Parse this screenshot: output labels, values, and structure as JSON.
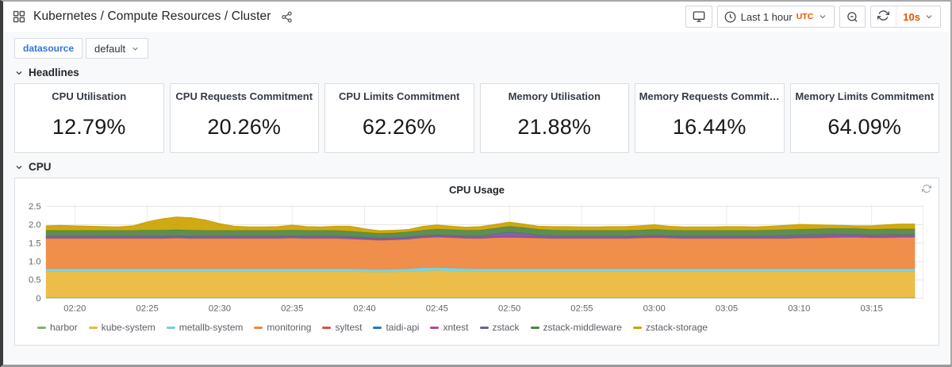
{
  "header": {
    "title": "Kubernetes / Compute Resources / Cluster",
    "toolbar": {
      "time_label": "Last 1 hour",
      "timezone": "UTC",
      "refresh_interval": "10s"
    }
  },
  "variables": {
    "label": "datasource",
    "value": "default"
  },
  "sections": {
    "headlines": "Headlines",
    "cpu": "CPU"
  },
  "stats": [
    {
      "title": "CPU Utilisation",
      "value": "12.79%"
    },
    {
      "title": "CPU Requests Commitment",
      "value": "20.26%"
    },
    {
      "title": "CPU Limits Commitment",
      "value": "62.26%"
    },
    {
      "title": "Memory Utilisation",
      "value": "21.88%"
    },
    {
      "title": "Memory Requests Commitm...",
      "value": "16.44%"
    },
    {
      "title": "Memory Limits Commitment",
      "value": "64.09%"
    }
  ],
  "colors": {
    "accent_orange": "#e55400",
    "variable_blue": "#3274d9",
    "panel_border": "#d9dce2"
  },
  "chart_data": {
    "type": "area",
    "stacked": true,
    "title": "CPU Usage",
    "x_start": "02:18",
    "x_step_minutes": 1,
    "n_points": 61,
    "ylim": [
      0,
      2.5
    ],
    "y_tick_values": [
      0,
      0.5,
      1.0,
      1.5,
      2.0,
      2.5
    ],
    "y_tick_labels": [
      "0",
      "0.5",
      "1.0",
      "1.5",
      "2.0",
      "2.5"
    ],
    "tick_indices": [
      2,
      7,
      12,
      17,
      22,
      27,
      32,
      37,
      42,
      47,
      52,
      57
    ],
    "tick_labels": [
      "02:20",
      "02:25",
      "02:30",
      "02:35",
      "02:40",
      "02:45",
      "02:50",
      "02:55",
      "03:00",
      "03:05",
      "03:10",
      "03:15"
    ],
    "legend_position": "bottom",
    "series": [
      {
        "name": "harbor",
        "color": "#7EB26D",
        "constant": 0.02
      },
      {
        "name": "kube-system",
        "color": "#EAB839",
        "values": [
          0.7,
          0.7,
          0.7,
          0.7,
          0.7,
          0.7,
          0.7,
          0.7,
          0.7,
          0.7,
          0.7,
          0.7,
          0.7,
          0.7,
          0.7,
          0.7,
          0.7,
          0.7,
          0.7,
          0.7,
          0.7,
          0.7,
          0.695,
          0.69,
          0.695,
          0.7,
          0.72,
          0.735,
          0.72,
          0.705,
          0.7,
          0.7,
          0.7,
          0.7,
          0.7,
          0.7,
          0.7,
          0.7,
          0.7,
          0.7,
          0.7,
          0.7,
          0.7,
          0.7,
          0.7,
          0.7,
          0.7,
          0.7,
          0.7,
          0.7,
          0.7,
          0.7,
          0.7,
          0.7,
          0.7,
          0.7,
          0.7,
          0.7,
          0.7,
          0.7,
          0.7
        ]
      },
      {
        "name": "metallb-system",
        "color": "#6ED0E0",
        "values": [
          0.08,
          0.08,
          0.08,
          0.08,
          0.08,
          0.08,
          0.08,
          0.08,
          0.08,
          0.08,
          0.08,
          0.08,
          0.08,
          0.08,
          0.08,
          0.08,
          0.08,
          0.08,
          0.08,
          0.08,
          0.08,
          0.08,
          0.075,
          0.07,
          0.075,
          0.08,
          0.085,
          0.08,
          0.08,
          0.08,
          0.08,
          0.08,
          0.08,
          0.08,
          0.08,
          0.08,
          0.08,
          0.08,
          0.08,
          0.08,
          0.08,
          0.08,
          0.08,
          0.08,
          0.08,
          0.08,
          0.08,
          0.08,
          0.08,
          0.08,
          0.08,
          0.08,
          0.08,
          0.08,
          0.08,
          0.08,
          0.08,
          0.08,
          0.08,
          0.08,
          0.08
        ]
      },
      {
        "name": "monitoring",
        "color": "#EF843C",
        "values": [
          0.83,
          0.83,
          0.83,
          0.83,
          0.83,
          0.83,
          0.83,
          0.83,
          0.83,
          0.84,
          0.83,
          0.83,
          0.83,
          0.83,
          0.83,
          0.83,
          0.83,
          0.84,
          0.83,
          0.83,
          0.83,
          0.82,
          0.81,
          0.8,
          0.8,
          0.81,
          0.82,
          0.83,
          0.83,
          0.83,
          0.83,
          0.85,
          0.86,
          0.85,
          0.84,
          0.83,
          0.83,
          0.83,
          0.83,
          0.83,
          0.83,
          0.84,
          0.85,
          0.84,
          0.83,
          0.83,
          0.83,
          0.83,
          0.83,
          0.83,
          0.83,
          0.83,
          0.84,
          0.84,
          0.85,
          0.86,
          0.86,
          0.85,
          0.85,
          0.86,
          0.86
        ]
      },
      {
        "name": "syltest",
        "color": "#E24D42",
        "constant": 0.005
      },
      {
        "name": "taidi-api",
        "color": "#1F78C1",
        "constant": 0.01
      },
      {
        "name": "xntest",
        "color": "#BA43A9",
        "constant": 0.01
      },
      {
        "name": "zstack",
        "color": "#705DA0",
        "values": [
          0.03,
          0.03,
          0.03,
          0.03,
          0.03,
          0.03,
          0.03,
          0.03,
          0.03,
          0.03,
          0.03,
          0.03,
          0.03,
          0.03,
          0.03,
          0.03,
          0.03,
          0.03,
          0.03,
          0.03,
          0.03,
          0.03,
          0.03,
          0.03,
          0.03,
          0.03,
          0.03,
          0.03,
          0.03,
          0.03,
          0.04,
          0.07,
          0.11,
          0.09,
          0.05,
          0.04,
          0.03,
          0.03,
          0.03,
          0.03,
          0.03,
          0.03,
          0.03,
          0.03,
          0.03,
          0.03,
          0.03,
          0.03,
          0.03,
          0.03,
          0.04,
          0.05,
          0.05,
          0.06,
          0.06,
          0.05,
          0.05,
          0.04,
          0.05,
          0.04,
          0.04
        ]
      },
      {
        "name": "zstack-middleware",
        "color": "#508642",
        "values": [
          0.16,
          0.16,
          0.16,
          0.16,
          0.16,
          0.16,
          0.16,
          0.17,
          0.17,
          0.17,
          0.17,
          0.16,
          0.16,
          0.16,
          0.16,
          0.16,
          0.16,
          0.16,
          0.16,
          0.16,
          0.16,
          0.15,
          0.14,
          0.13,
          0.13,
          0.14,
          0.15,
          0.16,
          0.16,
          0.16,
          0.16,
          0.16,
          0.16,
          0.16,
          0.16,
          0.16,
          0.16,
          0.16,
          0.16,
          0.16,
          0.16,
          0.16,
          0.17,
          0.16,
          0.16,
          0.16,
          0.16,
          0.16,
          0.16,
          0.16,
          0.16,
          0.16,
          0.16,
          0.16,
          0.16,
          0.16,
          0.16,
          0.16,
          0.16,
          0.16,
          0.16
        ]
      },
      {
        "name": "zstack-storage",
        "color": "#CCA300",
        "values": [
          0.12,
          0.13,
          0.12,
          0.11,
          0.1,
          0.09,
          0.12,
          0.22,
          0.3,
          0.34,
          0.33,
          0.28,
          0.18,
          0.11,
          0.09,
          0.09,
          0.1,
          0.13,
          0.1,
          0.09,
          0.11,
          0.13,
          0.09,
          0.07,
          0.07,
          0.06,
          0.1,
          0.11,
          0.09,
          0.08,
          0.09,
          0.1,
          0.11,
          0.09,
          0.08,
          0.09,
          0.1,
          0.09,
          0.09,
          0.1,
          0.1,
          0.11,
          0.12,
          0.1,
          0.09,
          0.09,
          0.09,
          0.1,
          0.1,
          0.09,
          0.1,
          0.11,
          0.13,
          0.11,
          0.09,
          0.08,
          0.07,
          0.09,
          0.11,
          0.13,
          0.13
        ]
      }
    ]
  }
}
